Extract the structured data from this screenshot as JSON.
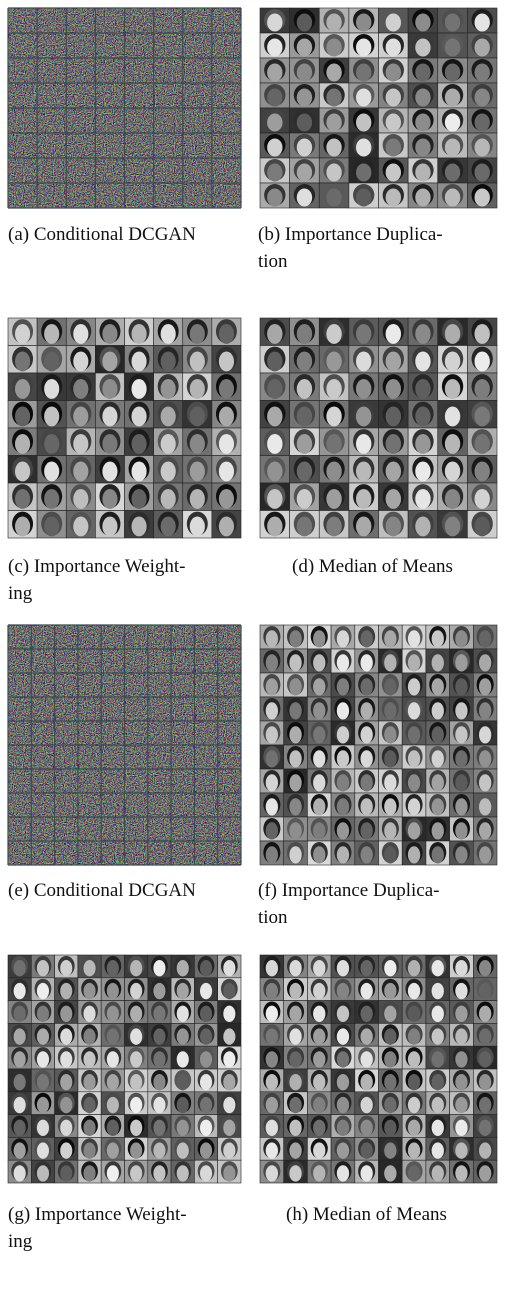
{
  "panels": [
    {
      "caption": [
        "(a) Conditional DCGAN"
      ]
    },
    {
      "caption": [
        "(b) Importance Duplica-",
        "tion"
      ]
    },
    {
      "caption": [
        "(c) Importance Weight-",
        "ing"
      ]
    },
    {
      "caption": [
        "(d) Median of Means"
      ]
    },
    {
      "caption": [
        "(e) Conditional DCGAN"
      ]
    },
    {
      "caption": [
        "(f) Importance Duplica-",
        "tion"
      ]
    },
    {
      "caption": [
        "(g) Importance Weight-",
        "ing"
      ]
    },
    {
      "caption": [
        "(h) Median of Means"
      ]
    }
  ]
}
